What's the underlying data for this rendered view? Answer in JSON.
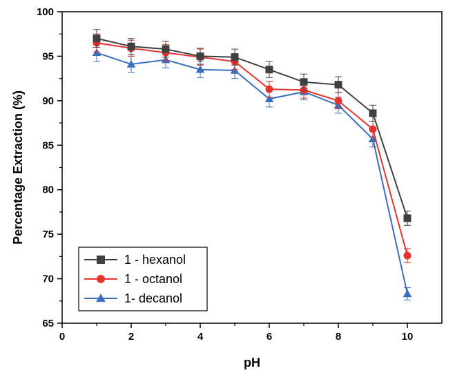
{
  "chart_data": {
    "type": "line",
    "xlabel": "pH",
    "ylabel": "Percentage Extraction (%)",
    "xlim": [
      0,
      11
    ],
    "ylim": [
      65,
      100
    ],
    "xticks": [
      0,
      2,
      4,
      6,
      8,
      10
    ],
    "yticks": [
      65,
      70,
      75,
      80,
      85,
      90,
      95,
      100
    ],
    "x": [
      1,
      2,
      3,
      4,
      5,
      6,
      7,
      8,
      9,
      10
    ],
    "legend_position": "bottom-left",
    "series": [
      {
        "name": "1 - hexanol",
        "marker": "square",
        "color": "#404040",
        "values": [
          97.0,
          96.1,
          95.8,
          95.0,
          94.9,
          93.5,
          92.1,
          91.8,
          88.6,
          76.8
        ],
        "errors": [
          1.0,
          0.9,
          0.9,
          0.9,
          0.9,
          0.9,
          0.9,
          0.9,
          0.9,
          0.8
        ]
      },
      {
        "name": "1 - octanol",
        "marker": "circle",
        "color": "#e8332d",
        "values": [
          96.5,
          95.9,
          95.4,
          94.9,
          94.4,
          91.3,
          91.2,
          90.0,
          86.8,
          72.6
        ],
        "errors": [
          1.0,
          0.9,
          0.9,
          0.9,
          0.9,
          0.9,
          0.9,
          0.9,
          0.9,
          0.8
        ]
      },
      {
        "name": "1- decanol",
        "marker": "triangle",
        "color": "#3a6fbd",
        "values": [
          95.4,
          94.1,
          94.6,
          93.5,
          93.4,
          90.2,
          91.0,
          89.5,
          85.7,
          68.3
        ],
        "errors": [
          1.0,
          0.9,
          0.9,
          0.9,
          0.9,
          0.9,
          0.9,
          0.9,
          0.9,
          0.7
        ]
      }
    ]
  }
}
